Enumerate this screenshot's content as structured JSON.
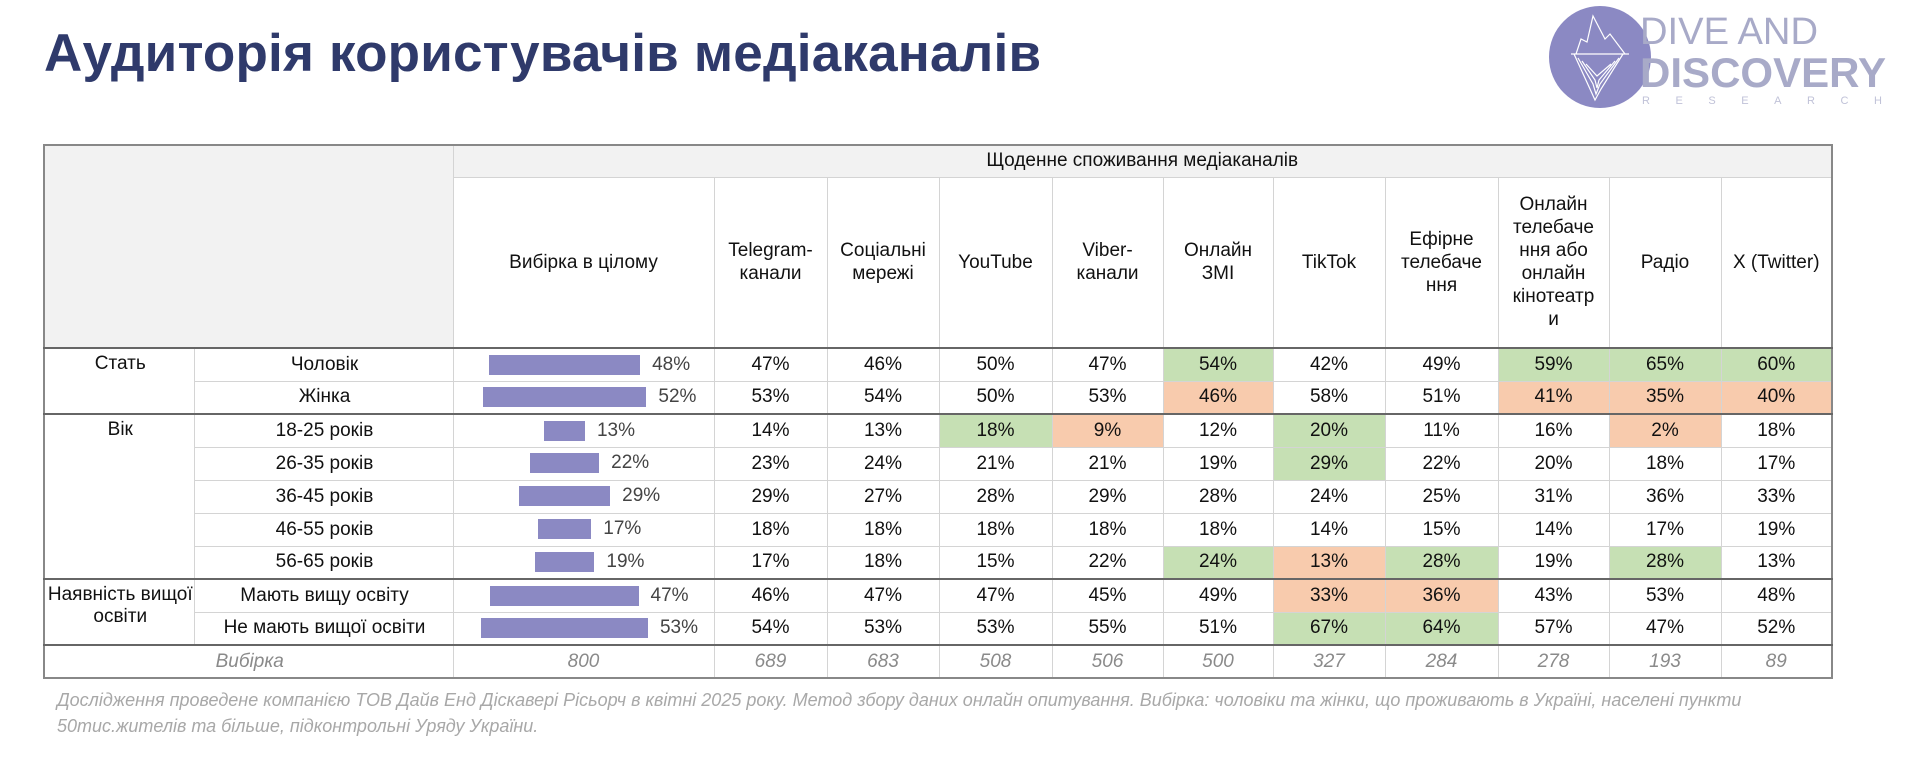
{
  "title": "Аудиторія користувачів медіаканалів",
  "logo": {
    "line1": "DIVE AND",
    "line2": "DISCOVERY",
    "line3": "RESEARCH",
    "color": "#8b89c3"
  },
  "colors": {
    "bar": "#8b89c3",
    "high": "#c6e0b4",
    "low": "#f8cbad",
    "title": "#2f3a6b"
  },
  "table": {
    "super_header": "Щоденне споживання медіаканалів",
    "total_header": "Вибірка в цілому",
    "columns": [
      "Telegram-\nканали",
      "Соціальні\nмережі",
      "YouTube",
      "Viber-\nканали",
      "Онлайн\nЗМІ",
      "TikTok",
      "Ефірне\nтелебаче\nння",
      "Онлайн\nтелебаче\nння або\nонлайн\nкінотеатр\nи",
      "Радіо",
      "X (Twitter)"
    ],
    "groups": [
      {
        "label": "Стать",
        "rows": [
          {
            "label": "Чоловік",
            "total": "48%",
            "total_pct": 48,
            "values": [
              "47%",
              "46%",
              "50%",
              "47%",
              "54%",
              "42%",
              "49%",
              "59%",
              "65%",
              "60%"
            ],
            "hl": [
              "",
              "",
              "",
              "",
              "g",
              "",
              "",
              "g",
              "g",
              "g"
            ]
          },
          {
            "label": "Жінка",
            "total": "52%",
            "total_pct": 52,
            "values": [
              "53%",
              "54%",
              "50%",
              "53%",
              "46%",
              "58%",
              "51%",
              "41%",
              "35%",
              "40%"
            ],
            "hl": [
              "",
              "",
              "",
              "",
              "o",
              "",
              "",
              "o",
              "o",
              "o"
            ]
          }
        ]
      },
      {
        "label": "Вік",
        "rows": [
          {
            "label": "18-25 років",
            "total": "13%",
            "total_pct": 13,
            "values": [
              "14%",
              "13%",
              "18%",
              "9%",
              "12%",
              "20%",
              "11%",
              "16%",
              "2%",
              "18%"
            ],
            "hl": [
              "",
              "",
              "g",
              "o",
              "",
              "g",
              "",
              "",
              "o",
              ""
            ]
          },
          {
            "label": "26-35 років",
            "total": "22%",
            "total_pct": 22,
            "values": [
              "23%",
              "24%",
              "21%",
              "21%",
              "19%",
              "29%",
              "22%",
              "20%",
              "18%",
              "17%"
            ],
            "hl": [
              "",
              "",
              "",
              "",
              "",
              "g",
              "",
              "",
              "",
              ""
            ]
          },
          {
            "label": "36-45 років",
            "total": "29%",
            "total_pct": 29,
            "values": [
              "29%",
              "27%",
              "28%",
              "29%",
              "28%",
              "24%",
              "25%",
              "31%",
              "36%",
              "33%"
            ],
            "hl": [
              "",
              "",
              "",
              "",
              "",
              "",
              "",
              "",
              "",
              ""
            ]
          },
          {
            "label": "46-55 років",
            "total": "17%",
            "total_pct": 17,
            "values": [
              "18%",
              "18%",
              "18%",
              "18%",
              "18%",
              "14%",
              "15%",
              "14%",
              "17%",
              "19%"
            ],
            "hl": [
              "",
              "",
              "",
              "",
              "",
              "",
              "",
              "",
              "",
              ""
            ]
          },
          {
            "label": "56-65 років",
            "total": "19%",
            "total_pct": 19,
            "values": [
              "17%",
              "18%",
              "15%",
              "22%",
              "24%",
              "13%",
              "28%",
              "19%",
              "28%",
              "13%"
            ],
            "hl": [
              "",
              "",
              "",
              "",
              "g",
              "o",
              "g",
              "",
              "g",
              ""
            ]
          }
        ]
      },
      {
        "label": "Наявність вищої освіти",
        "rows": [
          {
            "label": "Мають вищу освіту",
            "total": "47%",
            "total_pct": 47,
            "values": [
              "46%",
              "47%",
              "47%",
              "45%",
              "49%",
              "33%",
              "36%",
              "43%",
              "53%",
              "48%"
            ],
            "hl": [
              "",
              "",
              "",
              "",
              "",
              "o",
              "o",
              "",
              "",
              ""
            ]
          },
          {
            "label": "Не мають вищої освіти",
            "total": "53%",
            "total_pct": 53,
            "values": [
              "54%",
              "53%",
              "53%",
              "55%",
              "51%",
              "67%",
              "64%",
              "57%",
              "47%",
              "52%"
            ],
            "hl": [
              "",
              "",
              "",
              "",
              "",
              "g",
              "g",
              "",
              "",
              ""
            ]
          }
        ]
      }
    ],
    "sample": {
      "label": "Вибірка",
      "total": "800",
      "values": [
        "689",
        "683",
        "508",
        "506",
        "500",
        "327",
        "284",
        "278",
        "193",
        "89"
      ]
    }
  },
  "note": "Дослідження проведене компанією ТОВ Дайв Енд Діскавері Рісьорч в квітні 2025 року. Метод збору даних онлайн опитування. Вибірка: чоловіки та жінки, що проживають в Україні, населені пункти 50тис.жителів та більше, підконтрольні Уряду України."
}
